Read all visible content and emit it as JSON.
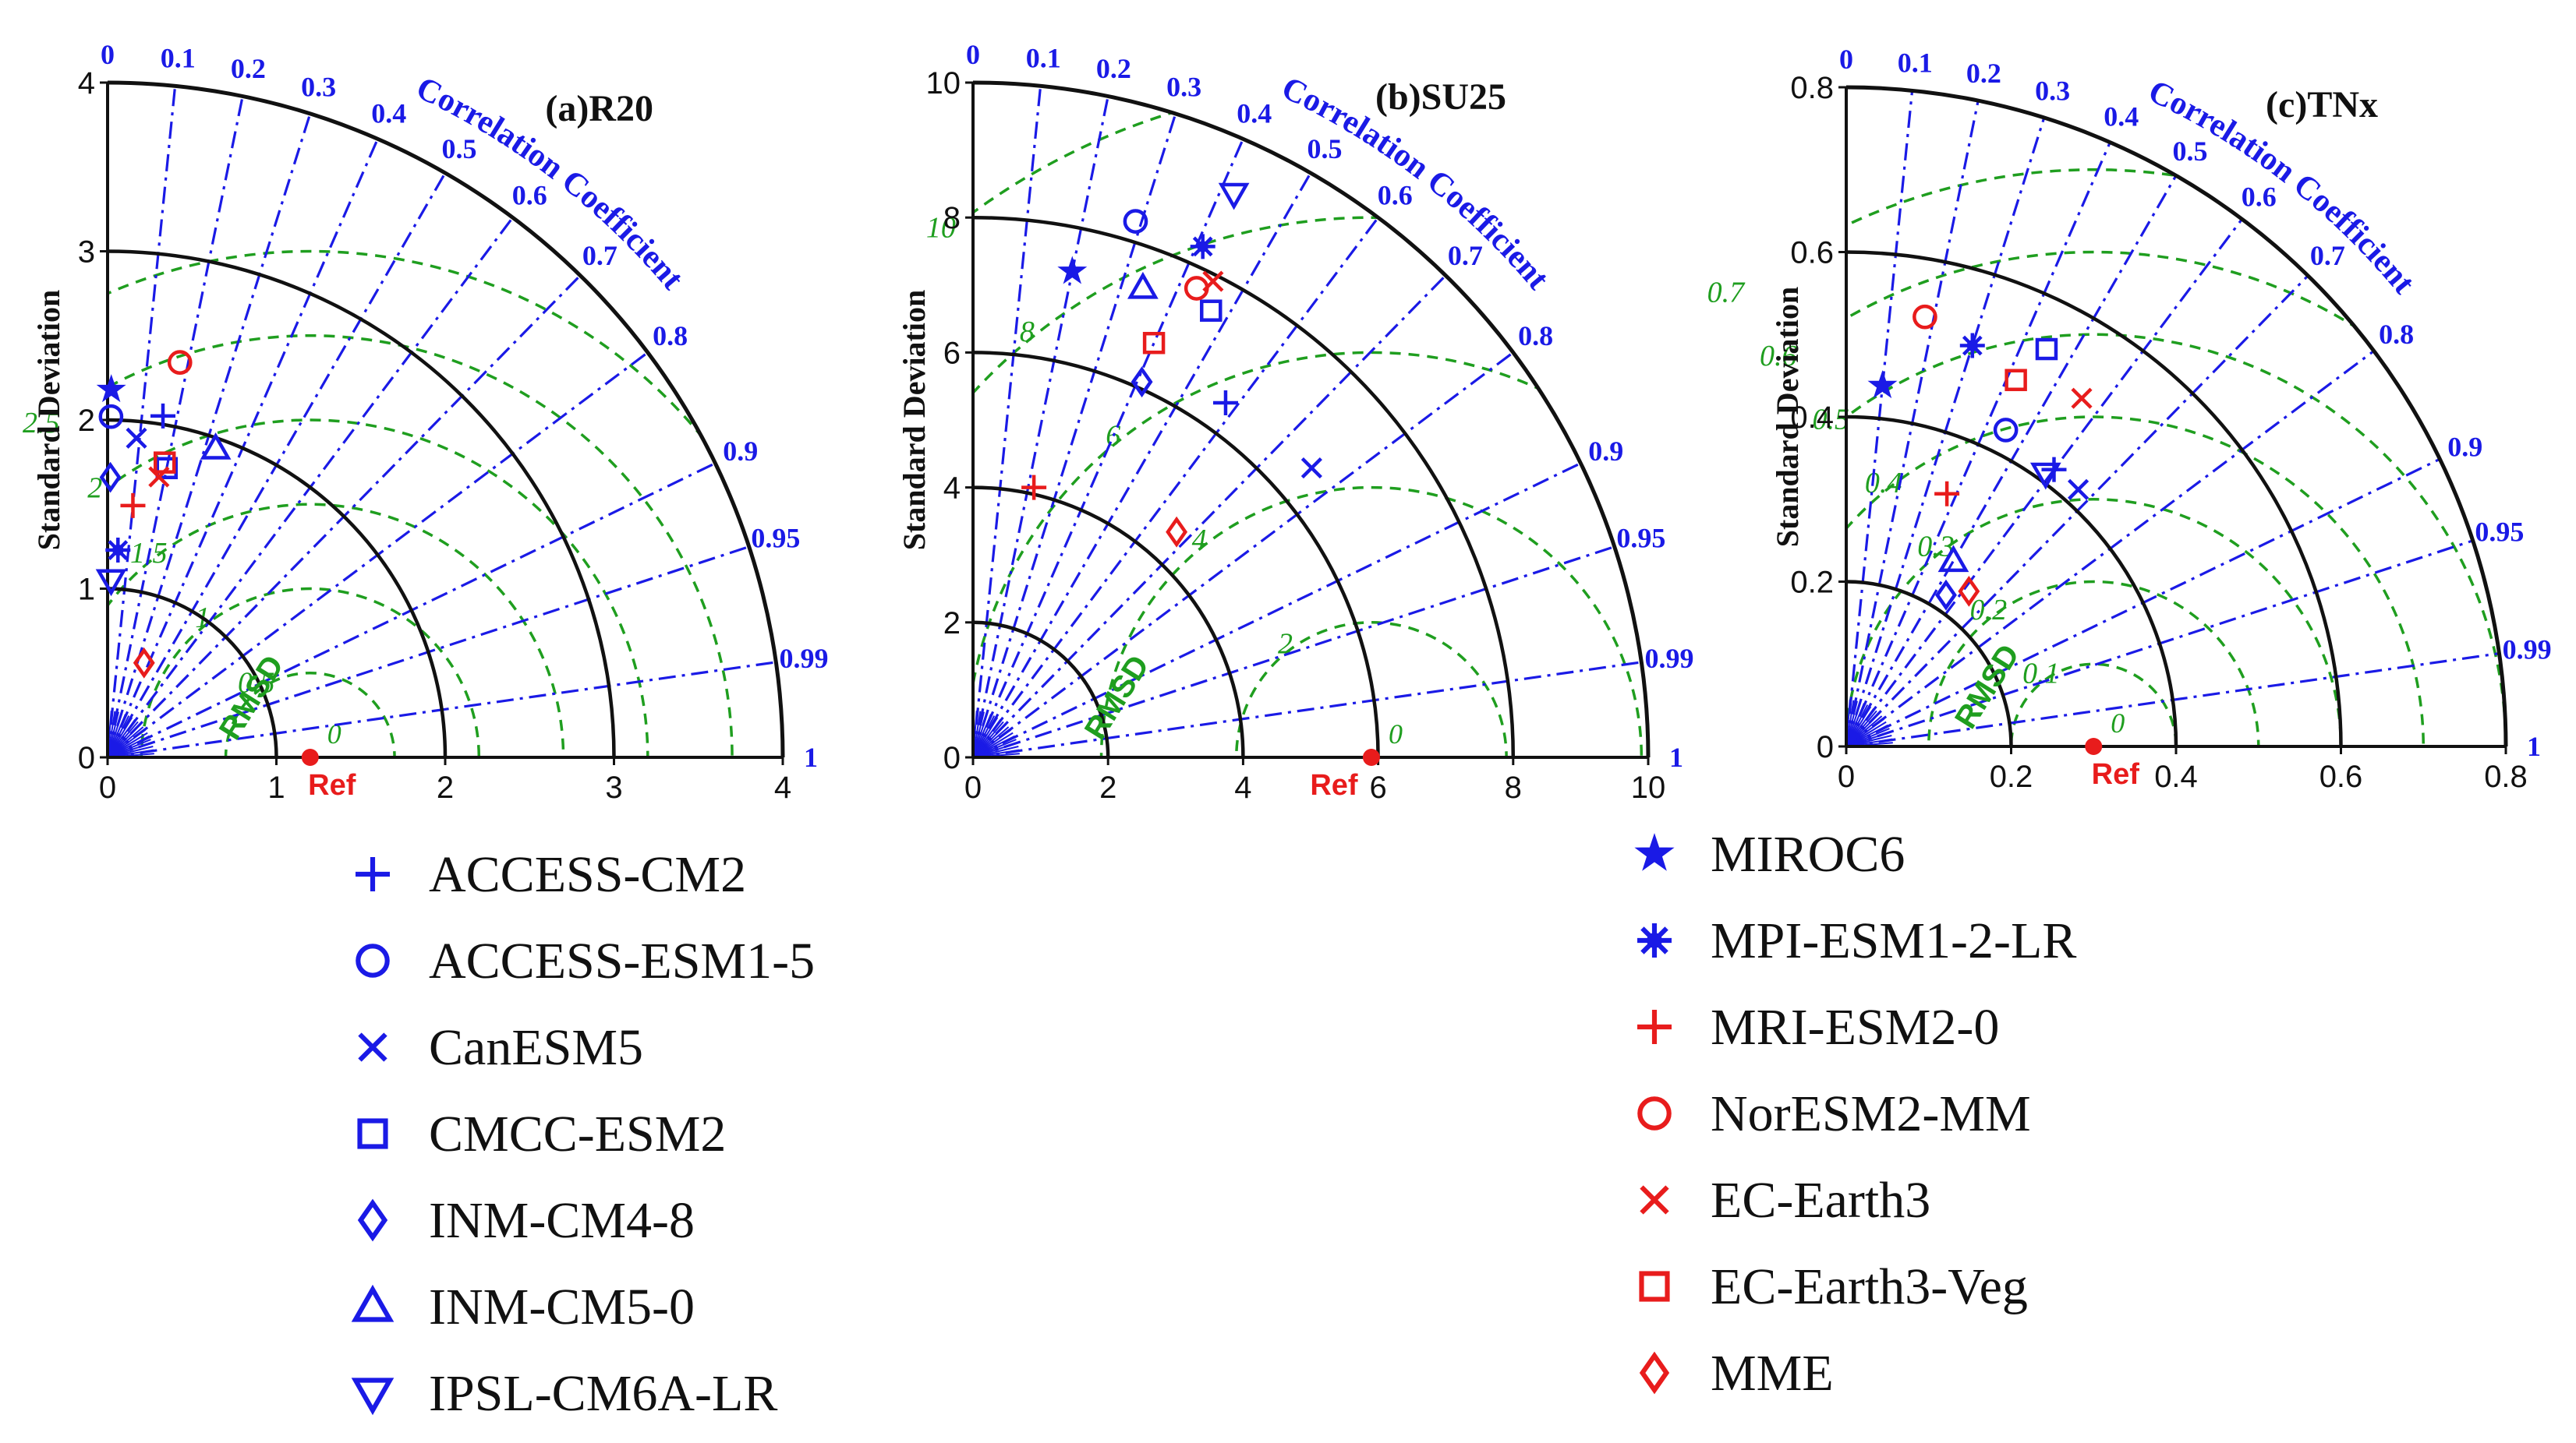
{
  "colors": {
    "blue": "#1a1ae6",
    "red": "#e81c1c",
    "green": "#1f9e1f",
    "black": "#111111"
  },
  "labels": {
    "ylabel": "Standard Deviation",
    "corr_label": "Correlation Coefficient",
    "rmsd_label": "RMSD",
    "ref_label": "Ref"
  },
  "chart_data": [
    {
      "type": "taylor",
      "title": "(a)R20",
      "std_max": 4,
      "std_ticks": [
        "0",
        "1",
        "2",
        "3",
        "4"
      ],
      "std_arcs": [
        1,
        2,
        3
      ],
      "ref_std": 1.2,
      "corr_ticks": [
        "0",
        "0.1",
        "0.2",
        "0.3",
        "0.4",
        "0.5",
        "0.6",
        "0.7",
        "0.8",
        "0.9",
        "0.95",
        "0.99",
        "1"
      ],
      "rmsd_levels": [
        "0.5",
        "1",
        "1.5",
        "2",
        "2.5",
        "3"
      ],
      "points": [
        {
          "model": "ACCESS-CM2",
          "std": 2.05,
          "corr": 0.16
        },
        {
          "model": "ACCESS-ESM1-5",
          "std": 2.02,
          "corr": 0.01
        },
        {
          "model": "CanESM5",
          "std": 1.9,
          "corr": 0.09
        },
        {
          "model": "CMCC-ESM2",
          "std": 1.75,
          "corr": 0.2
        },
        {
          "model": "INM-CM4-8",
          "std": 1.66,
          "corr": 0.01
        },
        {
          "model": "INM-CM5-0",
          "std": 1.94,
          "corr": 0.33
        },
        {
          "model": "IPSL-CM6A-LR",
          "std": 1.05,
          "corr": 0.02
        },
        {
          "model": "MIROC6",
          "std": 2.18,
          "corr": 0.01
        },
        {
          "model": "MPI-ESM1-2-LR",
          "std": 1.23,
          "corr": 0.05
        },
        {
          "model": "MRI-ESM2-0",
          "std": 1.5,
          "corr": 0.1
        },
        {
          "model": "NorESM2-MM",
          "std": 2.38,
          "corr": 0.18
        },
        {
          "model": "EC-Earth3",
          "std": 1.69,
          "corr": 0.18
        },
        {
          "model": "EC-Earth3-Veg",
          "std": 1.78,
          "corr": 0.19
        },
        {
          "model": "MME",
          "std": 0.6,
          "corr": 0.36
        }
      ]
    },
    {
      "type": "taylor",
      "title": "(b)SU25",
      "std_max": 10,
      "std_ticks": [
        "0",
        "2",
        "4",
        "6",
        "8",
        "10"
      ],
      "std_arcs": [
        2,
        4,
        6,
        8
      ],
      "ref_std": 5.9,
      "corr_ticks": [
        "0",
        "0.1",
        "0.2",
        "0.3",
        "0.4",
        "0.5",
        "0.6",
        "0.7",
        "0.8",
        "0.9",
        "0.95",
        "0.99",
        "1"
      ],
      "rmsd_levels": [
        "2",
        "4",
        "6",
        "8",
        "10"
      ],
      "points": [
        {
          "model": "ACCESS-CM2",
          "std": 6.45,
          "corr": 0.58
        },
        {
          "model": "ACCESS-ESM1-5",
          "std": 8.3,
          "corr": 0.29
        },
        {
          "model": "CanESM5",
          "std": 6.6,
          "corr": 0.76
        },
        {
          "model": "CMCC-ESM2",
          "std": 7.5,
          "corr": 0.47
        },
        {
          "model": "INM-CM4-8",
          "std": 6.1,
          "corr": 0.41
        },
        {
          "model": "INM-CM5-0",
          "std": 7.4,
          "corr": 0.34
        },
        {
          "model": "IPSL-CM6A-LR",
          "std": 9.2,
          "corr": 0.42
        },
        {
          "model": "MIROC6",
          "std": 7.35,
          "corr": 0.2
        },
        {
          "model": "MPI-ESM1-2-LR",
          "std": 8.3,
          "corr": 0.41
        },
        {
          "model": "MRI-ESM2-0",
          "std": 4.1,
          "corr": 0.22
        },
        {
          "model": "NorESM2-MM",
          "std": 7.7,
          "corr": 0.43
        },
        {
          "model": "EC-Earth3",
          "std": 7.9,
          "corr": 0.45
        },
        {
          "model": "EC-Earth3-Veg",
          "std": 6.7,
          "corr": 0.4
        },
        {
          "model": "MME",
          "std": 4.5,
          "corr": 0.67
        }
      ]
    },
    {
      "type": "taylor",
      "title": "(c)TNx",
      "std_max": 0.8,
      "std_ticks": [
        "0",
        "0.2",
        "0.4",
        "0.6",
        "0.8"
      ],
      "std_arcs": [
        0.2,
        0.4,
        0.6
      ],
      "ref_std": 0.3,
      "corr_ticks": [
        "0",
        "0.1",
        "0.2",
        "0.3",
        "0.4",
        "0.5",
        "0.6",
        "0.7",
        "0.8",
        "0.9",
        "0.95",
        "0.99",
        "1"
      ],
      "rmsd_levels": [
        "0.1",
        "0.2",
        "0.3",
        "0.4",
        "0.5",
        "0.6",
        "0.7"
      ],
      "points": [
        {
          "model": "ACCESS-CM2",
          "std": 0.42,
          "corr": 0.6
        },
        {
          "model": "ACCESS-ESM1-5",
          "std": 0.43,
          "corr": 0.45
        },
        {
          "model": "CanESM5",
          "std": 0.42,
          "corr": 0.67
        },
        {
          "model": "CMCC-ESM2",
          "std": 0.54,
          "corr": 0.45
        },
        {
          "model": "INM-CM4-8",
          "std": 0.22,
          "corr": 0.55
        },
        {
          "model": "INM-CM5-0",
          "std": 0.26,
          "corr": 0.5
        },
        {
          "model": "IPSL-CM6A-LR",
          "std": 0.41,
          "corr": 0.59
        },
        {
          "model": "MIROC6",
          "std": 0.44,
          "corr": 0.1
        },
        {
          "model": "MPI-ESM1-2-LR",
          "std": 0.51,
          "corr": 0.3
        },
        {
          "model": "MRI-ESM2-0",
          "std": 0.33,
          "corr": 0.37
        },
        {
          "model": "NorESM2-MM",
          "std": 0.53,
          "corr": 0.18
        },
        {
          "model": "EC-Earth3",
          "std": 0.51,
          "corr": 0.56
        },
        {
          "model": "EC-Earth3-Veg",
          "std": 0.49,
          "corr": 0.42
        },
        {
          "model": "MME",
          "std": 0.24,
          "corr": 0.62
        }
      ]
    }
  ],
  "legend": {
    "left": [
      {
        "label": "ACCESS-CM2",
        "marker": "plus",
        "color": "#1a1ae6"
      },
      {
        "label": "ACCESS-ESM1-5",
        "marker": "circle",
        "color": "#1a1ae6"
      },
      {
        "label": "CanESM5",
        "marker": "x",
        "color": "#1a1ae6"
      },
      {
        "label": "CMCC-ESM2",
        "marker": "square",
        "color": "#1a1ae6"
      },
      {
        "label": "INM-CM4-8",
        "marker": "diamond",
        "color": "#1a1ae6"
      },
      {
        "label": "INM-CM5-0",
        "marker": "triangle-up",
        "color": "#1a1ae6"
      },
      {
        "label": "IPSL-CM6A-LR",
        "marker": "triangle-down",
        "color": "#1a1ae6"
      }
    ],
    "right": [
      {
        "label": "MIROC6",
        "marker": "star",
        "color": "#1a1ae6"
      },
      {
        "label": "MPI-ESM1-2-LR",
        "marker": "asterisk",
        "color": "#1a1ae6"
      },
      {
        "label": "MRI-ESM2-0",
        "marker": "plus",
        "color": "#e81c1c"
      },
      {
        "label": "NorESM2-MM",
        "marker": "circle",
        "color": "#e81c1c"
      },
      {
        "label": "EC-Earth3",
        "marker": "x",
        "color": "#e81c1c"
      },
      {
        "label": "EC-Earth3-Veg",
        "marker": "square",
        "color": "#e81c1c"
      },
      {
        "label": "MME",
        "marker": "diamond",
        "color": "#e81c1c"
      }
    ]
  }
}
